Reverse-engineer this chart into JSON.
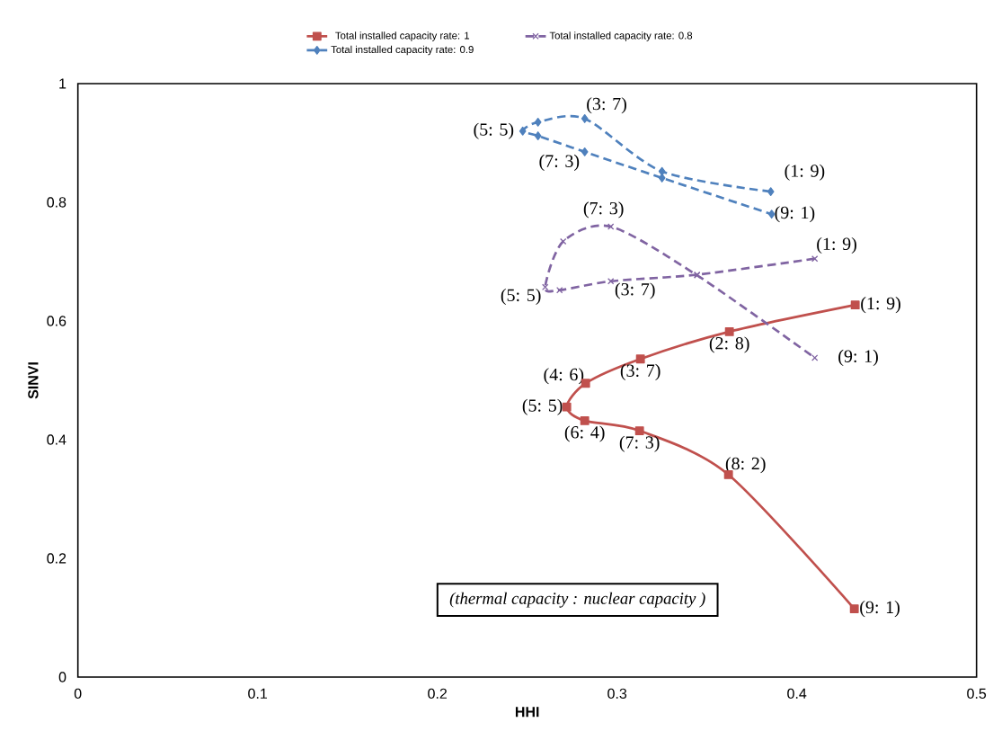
{
  "chart_data": {
    "type": "line",
    "xlabel": "HHI",
    "ylabel": "SINVI",
    "xlim": [
      0,
      0.5
    ],
    "ylim": [
      0,
      1
    ],
    "xticks": [
      0,
      0.1,
      0.2,
      0.3,
      0.4,
      0.5
    ],
    "yticks": [
      0,
      0.2,
      0.4,
      0.6,
      0.8,
      1
    ],
    "legend": "top",
    "grid": false,
    "series": [
      {
        "name": "Total installed capacity rate: 1",
        "color": "#c0504d",
        "marker": "square",
        "line_style": "solid",
        "x": [
          0.4325,
          0.3625,
          0.313,
          0.2825,
          0.272,
          0.282,
          0.3125,
          0.362,
          0.432
        ],
        "values": [
          0.627,
          0.582,
          0.536,
          0.495,
          0.455,
          0.432,
          0.415,
          0.341,
          0.115
        ]
      },
      {
        "name": "Total installed capacity rate: 0.8",
        "color": "#8064a2",
        "marker": "cross",
        "line_style": "dashed",
        "x": [
          0.41,
          0.3445,
          0.2965,
          0.268,
          0.26,
          0.27,
          0.2965,
          0.3445,
          0.41
        ],
        "values": [
          0.705,
          0.678,
          0.667,
          0.652,
          0.657,
          0.734,
          0.759,
          0.677,
          0.538
        ]
      },
      {
        "name": "Total installed capacity rate: 0.9",
        "color": "#4f81bd",
        "marker": "diamond",
        "line_style": "dashed",
        "x": [
          0.3855,
          0.325,
          0.282,
          0.256,
          0.2475,
          0.256,
          0.282,
          0.325,
          0.386
        ],
        "values": [
          0.818,
          0.852,
          0.941,
          0.935,
          0.92,
          0.912,
          0.885,
          0.841,
          0.78
        ]
      }
    ],
    "annotations": [
      {
        "text": "(1: 9)",
        "x": 0.4325,
        "y": 0.627
      },
      {
        "text": "(2: 8)",
        "x": 0.3625,
        "y": 0.582
      },
      {
        "text": "(3: 7)",
        "x": 0.313,
        "y": 0.536
      },
      {
        "text": "(4: 6)",
        "x": 0.2825,
        "y": 0.495
      },
      {
        "text": "(5: 5)",
        "x": 0.272,
        "y": 0.455
      },
      {
        "text": "(6: 4)",
        "x": 0.282,
        "y": 0.432
      },
      {
        "text": "(7: 3)",
        "x": 0.3125,
        "y": 0.415
      },
      {
        "text": "(8: 2)",
        "x": 0.362,
        "y": 0.341
      },
      {
        "text": "(9: 1)",
        "x": 0.432,
        "y": 0.115
      },
      {
        "text": "(7: 3)",
        "x": 0.2965,
        "y": 0.759
      },
      {
        "text": "(1: 9)",
        "x": 0.41,
        "y": 0.705
      },
      {
        "text": "(5: 5)",
        "x": 0.26,
        "y": 0.657
      },
      {
        "text": "(3: 7)",
        "x": 0.2965,
        "y": 0.667
      },
      {
        "text": "(9: 1)",
        "x": 0.41,
        "y": 0.538
      },
      {
        "text": "(5: 5)",
        "x": 0.2475,
        "y": 0.92
      },
      {
        "text": "(3: 7)",
        "x": 0.282,
        "y": 0.941
      },
      {
        "text": "(7: 3)",
        "x": 0.282,
        "y": 0.885
      },
      {
        "text": "(1: 9)",
        "x": 0.3855,
        "y": 0.818
      },
      {
        "text": "(9: 1)",
        "x": 0.386,
        "y": 0.78
      },
      "(thermal capacity : nuclear capacity )"
    ]
  }
}
